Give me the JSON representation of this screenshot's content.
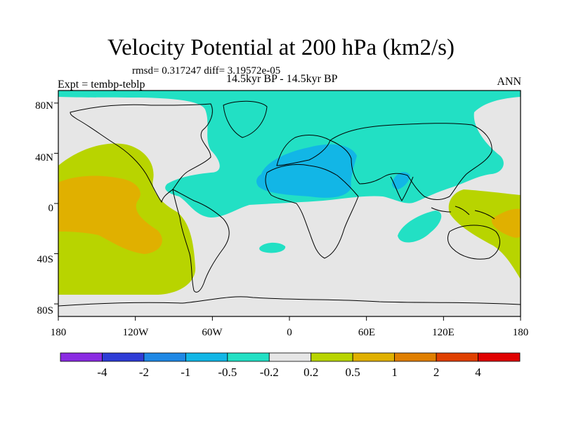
{
  "title": "Velocity Potential at 200 hPa (km2/s)",
  "stats": "rmsd= 0.317247 diff= 3.19572e-05",
  "experiment": "Expt = tembp-teblp",
  "period": "14.5kyr BP - 14.5kyr BP",
  "season": "ANN",
  "map": {
    "projection": "cylindrical equidistant",
    "lon_range": [
      -180,
      180
    ],
    "lat_range": [
      -90,
      90
    ],
    "x_tick_labels": [
      "180",
      "120W",
      "60W",
      "0",
      "60E",
      "120E",
      "180"
    ],
    "y_tick_labels": [
      "80N",
      "40N",
      "0",
      "40S",
      "80S"
    ],
    "features": [
      "coastlines"
    ]
  },
  "legend": {
    "colors": [
      "#8a2be2",
      "#2e3cd6",
      "#1e88e5",
      "#12b6e6",
      "#22e0c4",
      "#e6e6e6",
      "#b8d400",
      "#e0b000",
      "#e07f00",
      "#e04000",
      "#e00000"
    ],
    "labels": [
      "-4",
      "-2",
      "-1",
      "-0.5",
      "-0.2",
      "0.2",
      "0.5",
      "1",
      "2",
      "4"
    ]
  },
  "palette": {
    "neutral": "#e6e6e6",
    "neg_0_2": "#22e0c4",
    "neg_0_5": "#12b6e6",
    "pos_0_2": "#b8d400",
    "pos_0_5": "#e0b000"
  }
}
